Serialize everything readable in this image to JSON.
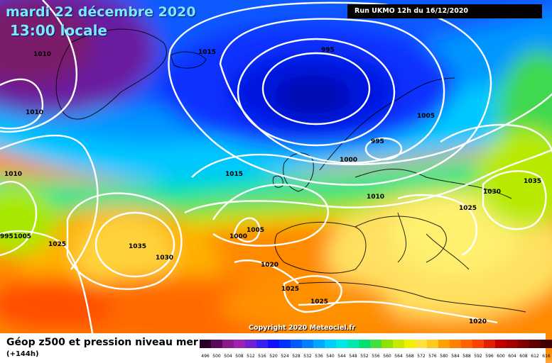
{
  "header": {
    "date": "mardi 22 décembre 2020",
    "time": "13:00 locale",
    "run": "Run UKMO 12h du 16/12/2020"
  },
  "copyright": "Copyright 2020 Meteociel.fr",
  "legend": {
    "title": "Géop z500 et pression niveau mer",
    "subtitle": "(+144h)",
    "scale": [
      {
        "value": "496",
        "color": "#2a002a"
      },
      {
        "value": "500",
        "color": "#5a0a5a"
      },
      {
        "value": "504",
        "color": "#8a1a8a"
      },
      {
        "value": "508",
        "color": "#a020b0"
      },
      {
        "value": "512",
        "color": "#7020d0"
      },
      {
        "value": "516",
        "color": "#3a20f0"
      },
      {
        "value": "520",
        "color": "#1010ff"
      },
      {
        "value": "524",
        "color": "#0032ff"
      },
      {
        "value": "528",
        "color": "#005aff"
      },
      {
        "value": "532",
        "color": "#0080ff"
      },
      {
        "value": "536",
        "color": "#00a8ff"
      },
      {
        "value": "540",
        "color": "#00ccff"
      },
      {
        "value": "544",
        "color": "#00e6e6"
      },
      {
        "value": "548",
        "color": "#00e8b0"
      },
      {
        "value": "552",
        "color": "#00e070"
      },
      {
        "value": "556",
        "color": "#40e040"
      },
      {
        "value": "560",
        "color": "#90e000"
      },
      {
        "value": "564",
        "color": "#c8e800"
      },
      {
        "value": "568",
        "color": "#f0f000"
      },
      {
        "value": "572",
        "color": "#ffe040"
      },
      {
        "value": "576",
        "color": "#ffc820"
      },
      {
        "value": "580",
        "color": "#ffa000"
      },
      {
        "value": "584",
        "color": "#ff8000"
      },
      {
        "value": "588",
        "color": "#ff6000"
      },
      {
        "value": "592",
        "color": "#ff4000"
      },
      {
        "value": "596",
        "color": "#e02000"
      },
      {
        "value": "600",
        "color": "#c00000"
      },
      {
        "value": "604",
        "color": "#a00000"
      },
      {
        "value": "608",
        "color": "#800000"
      },
      {
        "value": "612",
        "color": "#600000"
      },
      {
        "value": "616",
        "color": "#400000"
      }
    ]
  },
  "isobar_labels": [
    {
      "text": "1010",
      "name": "isobar-label-1010-greenland-north"
    },
    {
      "text": "1010",
      "name": "isobar-label-1010-greenland-south"
    },
    {
      "text": "1010",
      "name": "isobar-label-1010-west"
    },
    {
      "text": "1015",
      "name": "isobar-label-1015-iceland"
    },
    {
      "text": "995",
      "name": "isobar-label-995-low"
    },
    {
      "text": "1005",
      "name": "isobar-label-1005-scandinavia"
    },
    {
      "text": "995",
      "name": "isobar-label-995-north-sea"
    },
    {
      "text": "1000",
      "name": "isobar-label-1000-north-sea"
    },
    {
      "text": "1015",
      "name": "isobar-label-1015-atlantic"
    },
    {
      "text": "1010",
      "name": "isobar-label-1010-europe"
    },
    {
      "text": "1030",
      "name": "isobar-label-1030-russia"
    },
    {
      "text": "1035",
      "name": "isobar-label-1035-east"
    },
    {
      "text": "1025",
      "name": "isobar-label-1025-central"
    },
    {
      "text": "1005",
      "name": "isobar-label-1005-biscay"
    },
    {
      "text": "1000",
      "name": "isobar-label-1000-biscay"
    },
    {
      "text": "995",
      "name": "isobar-label-995-west-edge"
    },
    {
      "text": "1025",
      "name": "isobar-label-1025-west"
    },
    {
      "text": "1035",
      "name": "isobar-label-1035-azores"
    },
    {
      "text": "1030",
      "name": "isobar-label-1030-azores"
    },
    {
      "text": "1020",
      "name": "isobar-label-1020-iberia"
    },
    {
      "text": "1025",
      "name": "isobar-label-1025-morocco"
    },
    {
      "text": "1025",
      "name": "isobar-label-1025-africa"
    },
    {
      "text": "1020",
      "name": "isobar-label-1020-mediterranean"
    },
    {
      "text": "1005",
      "name": "isobar-label-1005-west-edge"
    }
  ],
  "colors": {
    "label_text": "#000000",
    "isobar": "#ffffff",
    "coastline": "#000000"
  }
}
